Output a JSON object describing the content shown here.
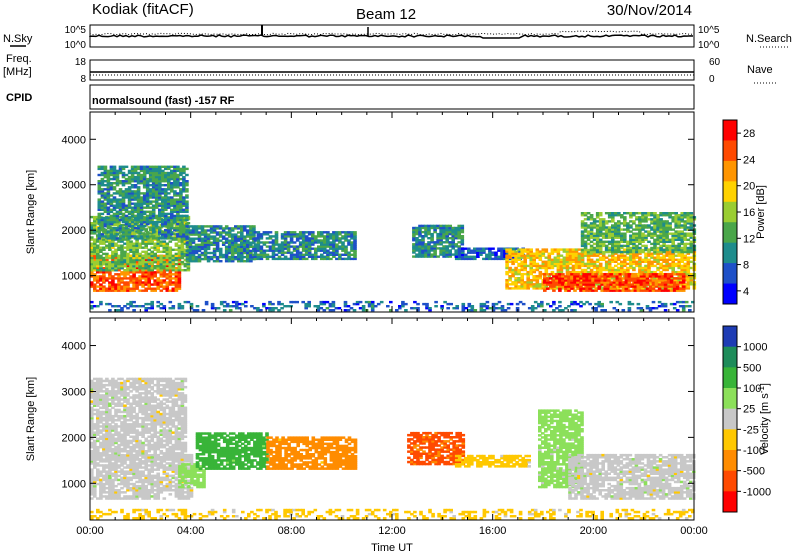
{
  "header": {
    "station": "Kodiak (fitACF)",
    "beam": "Beam 12",
    "date": "30/Nov/2014"
  },
  "strips": {
    "noise_left_label": "N.Sky",
    "noise_right_label": "N.Search",
    "noise_left_ticks": [
      "10^5",
      "10^0"
    ],
    "noise_right_ticks": [
      "10^5",
      "10^0"
    ],
    "freq_label": "Freq.",
    "freq_unit": "[MHz]",
    "freq_ticks": [
      "18",
      "8"
    ],
    "nave_label": "Nave",
    "nave_ticks": [
      "60",
      "0"
    ],
    "cpid_label": "CPID",
    "cpid_text": "normalsound (fast) -157 RF"
  },
  "chart_data": [
    {
      "type": "heatmap",
      "panel": "power",
      "ylabel": "Slant Range [km]",
      "xlabel": "",
      "x_ticks": [
        "00:00",
        "04:00",
        "08:00",
        "12:00",
        "16:00",
        "20:00",
        "00:00"
      ],
      "y_ticks": [
        1000,
        2000,
        3000,
        4000
      ],
      "ylim": [
        200,
        4600
      ],
      "xlim_hours": [
        0,
        24
      ],
      "colorbar_label": "Power [dB]",
      "colorbar_ticks": [
        28,
        24,
        20,
        16,
        12,
        8,
        4
      ],
      "colorbar_colors": [
        "#ff0000",
        "#ff4a00",
        "#ff9500",
        "#ffd200",
        "#9acd32",
        "#4aa64a",
        "#1e8c8c",
        "#1e50c8",
        "#0000ff"
      ],
      "blobs": [
        {
          "t0": 0.0,
          "t1": 3.6,
          "r0": 650,
          "r1": 1450,
          "level": 26
        },
        {
          "t0": 0.0,
          "t1": 3.9,
          "r0": 1100,
          "r1": 2300,
          "level": 14
        },
        {
          "t0": 0.3,
          "t1": 3.8,
          "r0": 1800,
          "r1": 3400,
          "level": 10
        },
        {
          "t0": 3.8,
          "t1": 6.5,
          "r0": 1300,
          "r1": 2100,
          "level": 9
        },
        {
          "t0": 6.5,
          "t1": 10.5,
          "r0": 1350,
          "r1": 1950,
          "level": 9
        },
        {
          "t0": 12.8,
          "t1": 14.8,
          "r0": 1400,
          "r1": 2100,
          "level": 10
        },
        {
          "t0": 14.5,
          "t1": 17.2,
          "r0": 1350,
          "r1": 1600,
          "level": 6
        },
        {
          "t0": 16.5,
          "t1": 24.0,
          "r0": 700,
          "r1": 1600,
          "level": 20
        },
        {
          "t0": 18.0,
          "t1": 23.6,
          "r0": 650,
          "r1": 1050,
          "level": 27
        },
        {
          "t0": 19.5,
          "t1": 24.0,
          "r0": 1500,
          "r1": 2400,
          "level": 13
        },
        {
          "t0": 0.0,
          "t1": 24.0,
          "r0": 220,
          "r1": 420,
          "level": 7
        }
      ]
    },
    {
      "type": "heatmap",
      "panel": "velocity",
      "ylabel": "Slant Range [km]",
      "xlabel": "Time UT",
      "x_ticks": [
        "00:00",
        "04:00",
        "08:00",
        "12:00",
        "16:00",
        "20:00",
        "00:00"
      ],
      "y_ticks": [
        1000,
        2000,
        3000,
        4000
      ],
      "ylim": [
        200,
        4600
      ],
      "xlim_hours": [
        0,
        24
      ],
      "colorbar_label": "Velocity [m s",
      "colorbar_label_sup": "-1",
      "colorbar_label_end": "]",
      "colorbar_ticks": [
        "1000",
        "500",
        "100",
        "25",
        "-25",
        "-100",
        "-500",
        "-1000"
      ],
      "colorbar_colors": [
        "#1e3cb4",
        "#1e8c5a",
        "#38b438",
        "#8ce05a",
        "#c8c8c8",
        "#ffc800",
        "#ff8c00",
        "#ff4a00",
        "#ff0000"
      ],
      "blobs": [
        {
          "t0": 0.0,
          "t1": 4.0,
          "r0": 650,
          "r1": 1600,
          "level": 0
        },
        {
          "t0": 0.0,
          "t1": 3.8,
          "r0": 1500,
          "r1": 3300,
          "level": 0
        },
        {
          "t0": 3.5,
          "t1": 4.5,
          "r0": 900,
          "r1": 1400,
          "level": 60
        },
        {
          "t0": 4.2,
          "t1": 7.0,
          "r0": 1300,
          "r1": 2100,
          "level": 300
        },
        {
          "t0": 7.0,
          "t1": 10.5,
          "r0": 1300,
          "r1": 2000,
          "level": -300
        },
        {
          "t0": 12.6,
          "t1": 14.8,
          "r0": 1400,
          "r1": 2100,
          "level": -600
        },
        {
          "t0": 14.5,
          "t1": 17.5,
          "r0": 1350,
          "r1": 1600,
          "level": -60
        },
        {
          "t0": 17.8,
          "t1": 19.5,
          "r0": 900,
          "r1": 2600,
          "level": 60
        },
        {
          "t0": 19.0,
          "t1": 24.0,
          "r0": 650,
          "r1": 1600,
          "level": 0
        },
        {
          "t0": 0.0,
          "t1": 24.0,
          "r0": 220,
          "r1": 420,
          "level": -40
        }
      ]
    }
  ]
}
